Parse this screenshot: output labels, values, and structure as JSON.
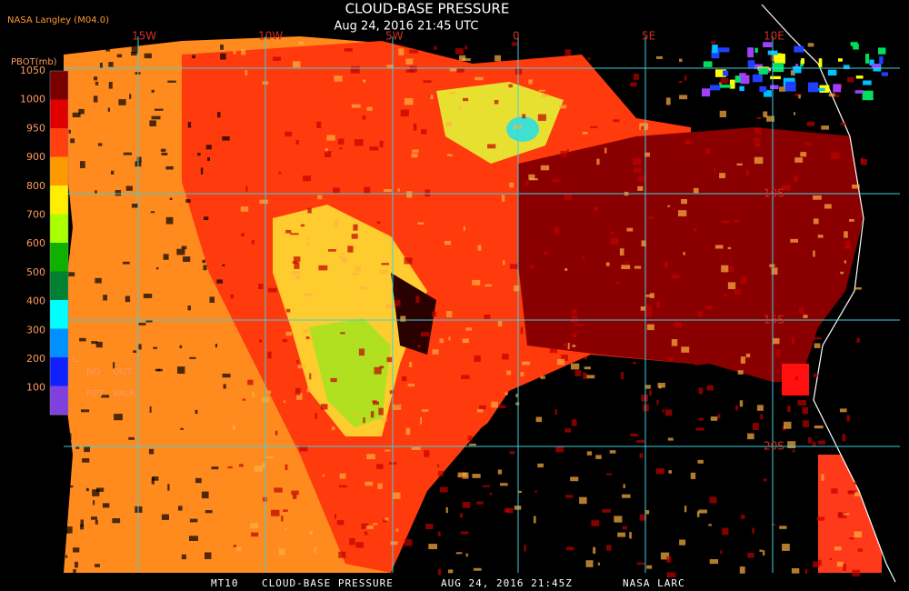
{
  "header": {
    "source": "NASA Langley (M04.0)",
    "title": "CLOUD-BASE PRESSURE",
    "time": "Aug 24, 2016 21:45 UTC"
  },
  "legend": {
    "title": "PBOT(mb)",
    "labels": [
      "1050",
      "1000",
      "950",
      "900",
      "800",
      "700",
      "600",
      "500",
      "400",
      "300",
      "200",
      "100"
    ],
    "marker": "L",
    "notes": [
      "NO",
      "OUT",
      "RET",
      "VALR"
    ]
  },
  "grid": {
    "longitudes": [
      "15W",
      "10W",
      "5W",
      "0",
      "5E",
      "10E"
    ],
    "latitudes": [
      "10S",
      "15S",
      "20S"
    ]
  },
  "footer": [
    "MT10",
    "CLOUD-BASE PRESSURE",
    "AUG 24, 2016 21:45Z",
    "NASA LARC"
  ]
}
